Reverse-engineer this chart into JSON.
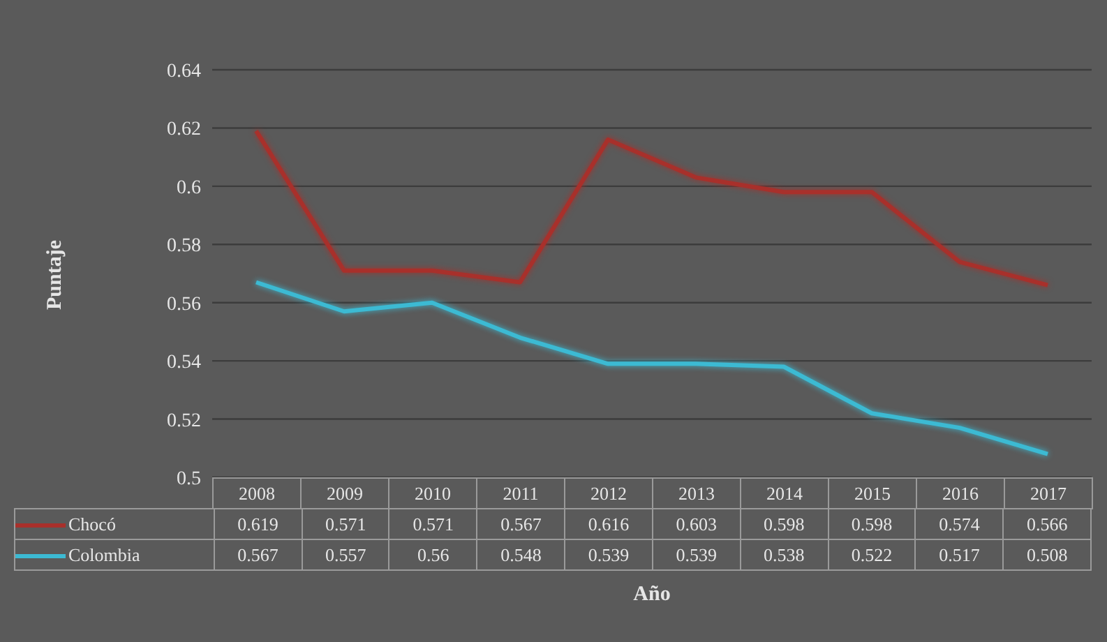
{
  "chart_data": {
    "type": "line",
    "xlabel": "Año",
    "ylabel": "Puntaje",
    "categories": [
      "2008",
      "2009",
      "2010",
      "2011",
      "2012",
      "2013",
      "2014",
      "2015",
      "2016",
      "2017"
    ],
    "series": [
      {
        "name": "Chocó",
        "color": "#a8302b",
        "values": [
          0.619,
          0.571,
          0.571,
          0.567,
          0.616,
          0.603,
          0.598,
          0.598,
          0.574,
          0.566
        ]
      },
      {
        "name": "Colombia",
        "color": "#3cbad3",
        "values": [
          0.567,
          0.557,
          0.56,
          0.548,
          0.539,
          0.539,
          0.538,
          0.522,
          0.517,
          0.508
        ]
      }
    ],
    "ylim": [
      0.5,
      0.64
    ],
    "yticks": [
      0.5,
      0.52,
      0.54,
      0.56,
      0.58,
      0.6,
      0.62,
      0.64
    ],
    "grid": "y",
    "legend": "bottom",
    "data_labels": true,
    "marker": "none",
    "line_style": "solid"
  }
}
